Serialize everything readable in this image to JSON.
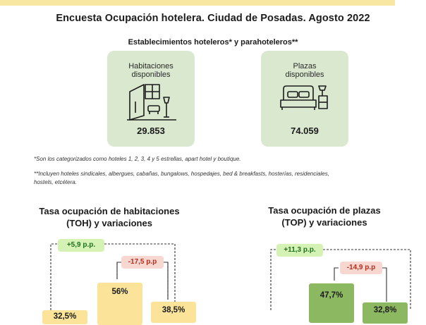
{
  "header": {
    "title": "Encuesta Ocupación hotelera. Ciudad de Posadas. Agosto 2022",
    "subtitle": "Establecimientos hoteleros* y parahoteleros**"
  },
  "cards": [
    {
      "label_line1": "Habitaciones",
      "label_line2": "disponibles",
      "value": "29.853",
      "icon": "room-icon"
    },
    {
      "label_line1": "Plazas",
      "label_line2": "disponibles",
      "value": "74.059",
      "icon": "bed-icon"
    }
  ],
  "notes": {
    "note1": "*Son los categorizados como hoteles 1, 2, 3, 4 y 5 estrellas, apart hotel y boutique.",
    "note2_line1": "**Incluyen hoteles sindicales, albergues, cabañas, bungalows, hospedajes, bed & breakfasts, hosterías, residenciales,",
    "note2_line2": "hostels, etcétera."
  },
  "colors": {
    "card_bg": "#d9e8cf",
    "bar_yellow": "#fbe49a",
    "bar_green": "#8db862",
    "positive_bg": "#d3f2b3",
    "negative_bg": "#f8d7d0",
    "top_band": "#f8e6a3"
  },
  "chart_data": [
    {
      "type": "bar",
      "title_line1": "Tasa ocupación de habitaciones",
      "title_line2": "(TOH) y variaciones",
      "values": [
        32.5,
        56,
        38.5
      ],
      "value_labels": [
        "32,5%",
        "56%",
        "38,5%"
      ],
      "variations": [
        {
          "label": "+5,9 p.p.",
          "sign": "positive"
        },
        {
          "label": "-17,5 p.p",
          "sign": "negative"
        }
      ],
      "bar_color": "#fbe49a"
    },
    {
      "type": "bar",
      "title_line1": "Tasa ocupación de plazas",
      "title_line2": "(TOP) y variaciones",
      "values": [
        47.7,
        32.8
      ],
      "value_labels": [
        "47,7%",
        "32,8%"
      ],
      "variations": [
        {
          "label": "+11,3 p.p.",
          "sign": "positive"
        },
        {
          "label": "-14,9 p.p",
          "sign": "negative"
        }
      ],
      "bar_color": "#8db862"
    }
  ]
}
